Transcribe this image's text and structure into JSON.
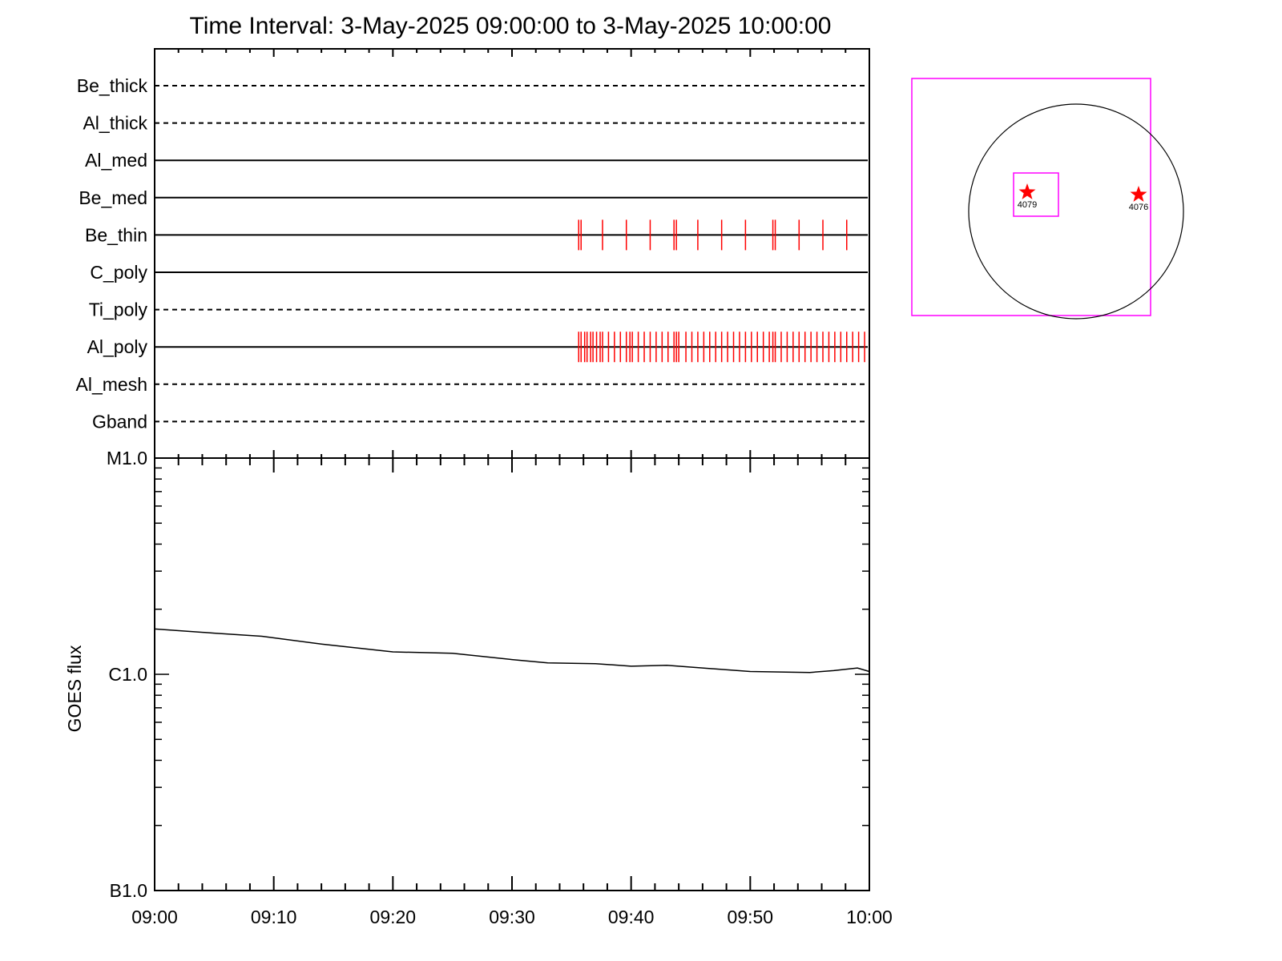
{
  "title": "Time Interval:  3-May-2025 09:00:00 to  3-May-2025 10:00:00",
  "chart_data": [
    {
      "type": "line",
      "subtype": "observation-timeline",
      "x_range": [
        "09:00",
        "10:00"
      ],
      "rows": [
        {
          "name": "Be_thick",
          "style": "dashed",
          "events": []
        },
        {
          "name": "Al_thick",
          "style": "dashed",
          "events": []
        },
        {
          "name": "Al_med",
          "style": "solid",
          "events": []
        },
        {
          "name": "Be_med",
          "style": "solid",
          "events": []
        },
        {
          "name": "Be_thin",
          "style": "solid",
          "events": [
            35.6,
            35.8,
            37.6,
            39.6,
            41.6,
            43.6,
            43.8,
            45.6,
            47.6,
            49.6,
            51.9,
            52.1,
            54.1,
            56.1,
            58.1
          ]
        },
        {
          "name": "C_poly",
          "style": "solid",
          "events": []
        },
        {
          "name": "Ti_poly",
          "style": "dashed",
          "events": []
        },
        {
          "name": "Al_poly",
          "style": "solid",
          "events": [
            35.6,
            35.8,
            36.1,
            36.3,
            36.6,
            36.8,
            37.1,
            37.4,
            37.6,
            38.1,
            38.6,
            39.1,
            39.6,
            39.9,
            40.1,
            40.6,
            41.1,
            41.6,
            42.1,
            42.6,
            43.1,
            43.6,
            43.8,
            44.0,
            44.6,
            45.1,
            45.6,
            46.1,
            46.6,
            47.1,
            47.6,
            48.1,
            48.6,
            49.1,
            49.6,
            50.1,
            50.6,
            51.1,
            51.6,
            51.9,
            52.1,
            52.6,
            53.1,
            53.6,
            54.1,
            54.6,
            55.1,
            55.6,
            56.1,
            56.6,
            57.1,
            57.6,
            58.1,
            58.6,
            59.1,
            59.6
          ]
        },
        {
          "name": "Al_mesh",
          "style": "dashed",
          "events": []
        },
        {
          "name": "Gband",
          "style": "dashed",
          "events": []
        }
      ],
      "event_color": "#ff0000"
    },
    {
      "type": "line",
      "ylabel": "GOES flux",
      "yscale": "log",
      "ylim": [
        1e-07,
        1e-05
      ],
      "y_ticks": [
        {
          "value": 1e-05,
          "label": "M1.0"
        },
        {
          "value": 1e-06,
          "label": "C1.0"
        },
        {
          "value": 1e-07,
          "label": "B1.0"
        }
      ],
      "x_ticks": [
        "09:00",
        "09:10",
        "09:20",
        "09:30",
        "09:40",
        "09:50",
        "10:00"
      ],
      "series": [
        {
          "x": [
            0,
            5,
            9,
            14,
            20,
            25,
            30,
            33,
            37,
            40,
            43,
            46,
            50,
            55,
            57,
            59,
            60
          ],
          "values": [
            1.62e-06,
            1.55e-06,
            1.5e-06,
            1.38e-06,
            1.27e-06,
            1.25e-06,
            1.17e-06,
            1.13e-06,
            1.12e-06,
            1.09e-06,
            1.1e-06,
            1.07e-06,
            1.03e-06,
            1.02e-06,
            1.04e-06,
            1.07e-06,
            1.03e-06
          ]
        }
      ],
      "color": "#000000"
    },
    {
      "type": "scatter",
      "subtype": "solar-disk-map",
      "markers": [
        {
          "label": "4079",
          "color": "#ff0000"
        },
        {
          "label": "4076",
          "color": "#ff0000"
        }
      ],
      "box_color": "#ff00ff"
    }
  ]
}
